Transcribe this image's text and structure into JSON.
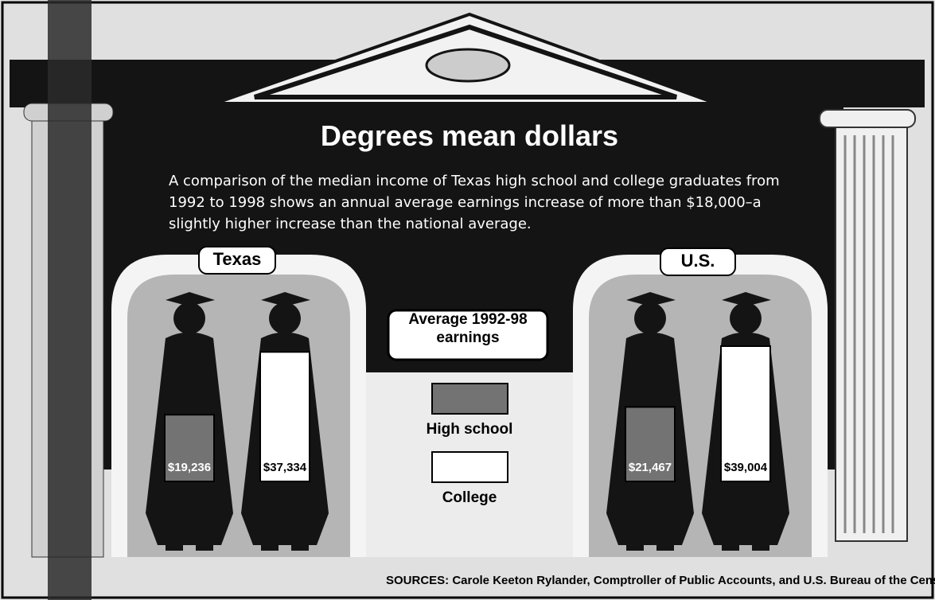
{
  "chart_data": {
    "type": "bar",
    "title": "Degrees mean dollars",
    "subtitle": "A comparison of the median income of Texas high school and college graduates from 1992 to 1998 shows an annual average earnings increase of more than $18,000–a slightly higher increase than the national average.",
    "legend_title": "Average 1992-98 earnings",
    "categories": [
      "Texas",
      "U.S."
    ],
    "series": [
      {
        "name": "High school",
        "color": "#737373",
        "values": [
          19236,
          21467
        ],
        "value_labels": [
          "$19,236",
          "$21,467"
        ]
      },
      {
        "name": "College",
        "color": "#ffffff",
        "values": [
          37334,
          39004
        ],
        "value_labels": [
          "$37,334",
          "$39,004"
        ]
      }
    ],
    "source": "SOURCES: Carole Keeton Rylander, Comptroller of Public Accounts, and U.S. Bureau of the Census."
  }
}
